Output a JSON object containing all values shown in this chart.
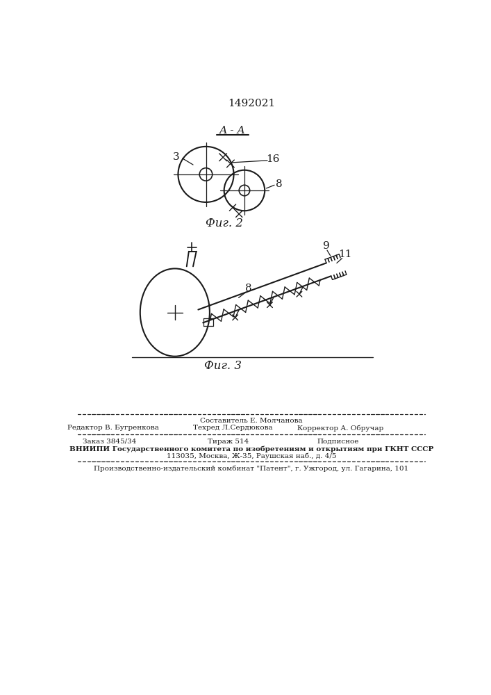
{
  "patent_number": "1492021",
  "fig2_label": "А - А",
  "fig2_caption": "Фиг. 2",
  "fig3_caption": "Фиг. 3",
  "label_3": "3",
  "label_16": "16",
  "label_8_fig2": "8",
  "label_8_fig3": "8",
  "label_9": "9",
  "label_11": "11",
  "bg_color": "#ffffff",
  "line_color": "#1a1a1a",
  "footer_line1_left": "Редактор В. Бугренкова",
  "footer_line1_center": "Техред Л.Сердюкова",
  "footer_line1_center_top": "Составитель Е. Молчанова",
  "footer_line1_right": "Корректор А. Обручар",
  "footer_line2": "Заказ 3845/34",
  "footer_line2_center": "Тираж 514",
  "footer_line2_right": "Подписное",
  "footer_line3": "ВНИИПИ Государственного комитета по изобретениям и открытиям при ГКНТ СССР",
  "footer_line4": "113035, Москва, Ж-35, Раушская наб., д. 4/5",
  "footer_line5": "Производственно-издательский комбинат \"Патент\", г. Ужгород, ул. Гагарина, 101"
}
